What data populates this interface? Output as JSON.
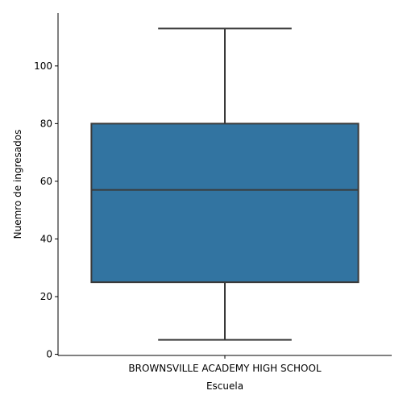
{
  "chart_data": {
    "type": "box",
    "title": "",
    "xlabel": "Escuela",
    "ylabel": "Nuemro de ingresados",
    "categories": [
      "BROWNSVILLE ACADEMY HIGH SCHOOL"
    ],
    "boxes": [
      {
        "category": "BROWNSVILLE ACADEMY HIGH SCHOOL",
        "min": 5,
        "q1": 25,
        "median": 57,
        "q3": 80,
        "max": 113
      }
    ],
    "ylim": [
      -0.4,
      118.4
    ],
    "yticks": [
      0,
      20,
      40,
      60,
      80,
      100
    ],
    "grid": false,
    "legend": "none",
    "colors": {
      "box_fill": "#3274a1",
      "box_edge": "#3a3a3a"
    }
  }
}
